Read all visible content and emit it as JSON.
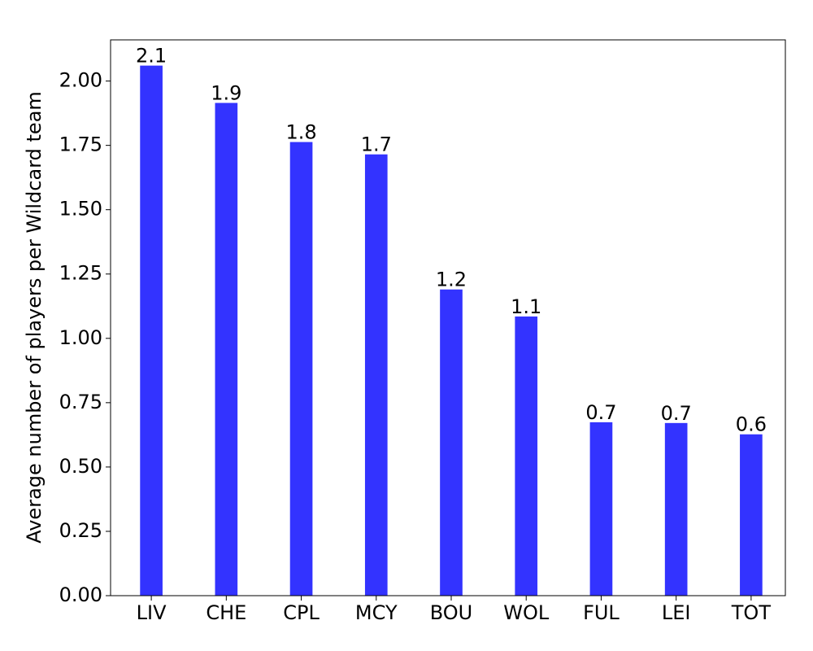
{
  "chart_data": {
    "type": "bar",
    "y_label": "Average number of players per Wildcard team",
    "categories": [
      "LIV",
      "CHE",
      "CPL",
      "MCY",
      "BOU",
      "WOL",
      "FUL",
      "LEI",
      "TOT"
    ],
    "values": [
      2.06,
      1.915,
      1.763,
      1.715,
      1.19,
      1.085,
      0.674,
      0.671,
      0.627
    ],
    "value_labels": [
      "2.1",
      "1.9",
      "1.8",
      "1.7",
      "1.2",
      "1.1",
      "0.7",
      "0.7",
      "0.6"
    ],
    "color": "#3333ff",
    "ylim": [
      0,
      2.16
    ],
    "yticks": [
      {
        "value": 0,
        "label": "0.00"
      },
      {
        "value": 0.25,
        "label": "0.25"
      },
      {
        "value": 0.5,
        "label": "0.50"
      },
      {
        "value": 0.75,
        "label": "0.75"
      },
      {
        "value": 1,
        "label": "1.00"
      },
      {
        "value": 1.25,
        "label": "1.25"
      },
      {
        "value": 1.5,
        "label": "1.50"
      },
      {
        "value": 1.75,
        "label": "1.75"
      },
      {
        "value": 2,
        "label": "2.00"
      }
    ],
    "grid": false
  }
}
